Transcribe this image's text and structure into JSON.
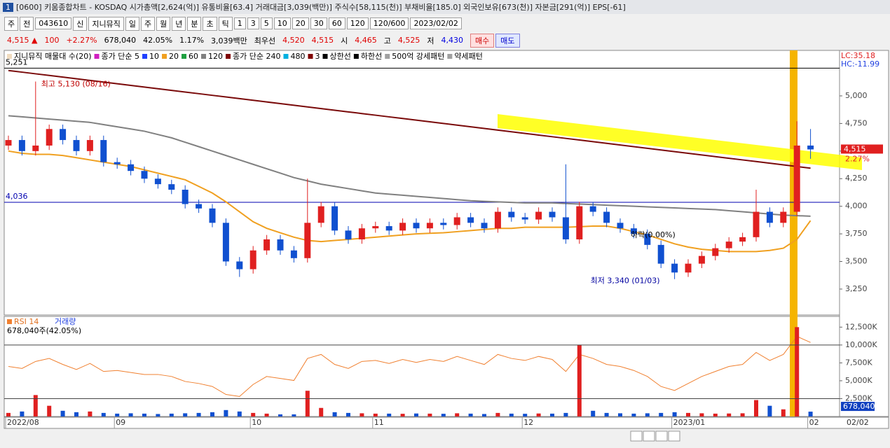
{
  "window": {
    "title": "[0600] 키움종합차트 - KOSDAQ 시가총액[2,624(억)] 유통비율[63.4] 거래대금[3,039(백만)] 주식수[58,115(천)] 부채비율[185.0] 외국인보유[673(천)] 자본금[291(억)] EPS[-61]"
  },
  "toolbar": {
    "items": [
      "주",
      "전",
      "043610",
      "신",
      "지니뮤직",
      "일",
      "주",
      "월",
      "년",
      "분",
      "초",
      "틱",
      "1",
      "3",
      "5",
      "10",
      "20",
      "30",
      "60",
      "120",
      "120/600",
      "2023/02/02"
    ]
  },
  "quote": {
    "items": [
      {
        "text": "4,515 ▲",
        "color": "#e00000"
      },
      {
        "text": "100",
        "color": "#e00000"
      },
      {
        "text": "+2.27%",
        "color": "#e00000"
      },
      {
        "text": "678,040",
        "color": "#000000"
      },
      {
        "text": "42.05%",
        "color": "#000000"
      },
      {
        "text": "1.17%",
        "color": "#000000"
      },
      {
        "text": "3,039백만",
        "color": "#000000"
      },
      {
        "text": "최우선",
        "color": "#000000"
      },
      {
        "text": "4,520",
        "color": "#e00000"
      },
      {
        "text": "4,515",
        "color": "#e00000"
      },
      {
        "text": "시",
        "color": "#000000"
      },
      {
        "text": "4,465",
        "color": "#e00000"
      },
      {
        "text": "고",
        "color": "#000000"
      },
      {
        "text": "4,525",
        "color": "#e00000"
      },
      {
        "text": "저",
        "color": "#000000"
      },
      {
        "text": "4,430",
        "color": "#0000e0"
      }
    ],
    "buy": "매수",
    "sell": "매도"
  },
  "chart_data": {
    "type": "candlestick",
    "legend": [
      {
        "text": "지니뮤직 매물대 수(20)",
        "color": "#f0dcc0"
      },
      {
        "text": "종가 단순 5",
        "color": "#d020c0"
      },
      {
        "text": "10",
        "color": "#2040ff"
      },
      {
        "text": "20",
        "color": "#f0a020"
      },
      {
        "text": "60",
        "color": "#20a040"
      },
      {
        "text": "120",
        "color": "#808080"
      },
      {
        "text": "종가 단순 240",
        "color": "#800000"
      },
      {
        "text": "480",
        "color": "#00b0e0"
      },
      {
        "text": "3",
        "color": "#800000"
      },
      {
        "text": "상한선",
        "color": "#000000"
      },
      {
        "text": "하한선",
        "color": "#000000"
      },
      {
        "text": "500억 강세패턴",
        "color": "#a0a0a0"
      },
      {
        "text": "약세패턴",
        "color": "#a0a0a0"
      }
    ],
    "categories": [
      "2022/08",
      null,
      null,
      null,
      null,
      null,
      null,
      null,
      "09",
      null,
      null,
      null,
      null,
      null,
      null,
      null,
      null,
      null,
      "10",
      null,
      null,
      null,
      null,
      null,
      null,
      null,
      null,
      "11",
      null,
      null,
      null,
      null,
      null,
      null,
      null,
      null,
      null,
      null,
      "12",
      null,
      null,
      null,
      null,
      null,
      null,
      null,
      null,
      null,
      null,
      "2023/01",
      null,
      null,
      null,
      null,
      null,
      null,
      null,
      null,
      null,
      "02"
    ],
    "open": [
      4550,
      4600,
      4500,
      4550,
      4700,
      4600,
      4500,
      4600,
      4400,
      4380,
      4320,
      4250,
      4200,
      4150,
      4020,
      3980,
      3850,
      3500,
      3430,
      3600,
      3700,
      3600,
      3530,
      3850,
      4000,
      3780,
      3700,
      3800,
      3820,
      3780,
      3850,
      3800,
      3850,
      3830,
      3900,
      3850,
      3800,
      3950,
      3900,
      3880,
      3950,
      3900,
      3700,
      4000,
      3950,
      3850,
      3800,
      3750,
      3650,
      3480,
      3400,
      3480,
      3550,
      3620,
      3680,
      3720,
      3950,
      3850,
      3950,
      4550
    ],
    "high": [
      4640,
      4640,
      5130,
      4740,
      4740,
      4640,
      4640,
      4640,
      4440,
      4420,
      4360,
      4290,
      4240,
      4190,
      4060,
      4020,
      3890,
      3540,
      3640,
      3740,
      3740,
      3640,
      4250,
      4040,
      4040,
      3820,
      3840,
      3860,
      3860,
      3890,
      3890,
      3890,
      3890,
      3940,
      3940,
      3890,
      3990,
      3990,
      3940,
      3990,
      3990,
      4380,
      4040,
      4040,
      3990,
      3890,
      3840,
      3790,
      3690,
      3520,
      3520,
      3590,
      3660,
      3720,
      3760,
      4150,
      3990,
      3990,
      4770,
      4700
    ],
    "low": [
      4510,
      4460,
      4460,
      4510,
      4560,
      4460,
      4460,
      4360,
      4340,
      4280,
      4210,
      4160,
      4110,
      3980,
      3940,
      3810,
      3460,
      3360,
      3390,
      3560,
      3560,
      3490,
      3490,
      3810,
      3740,
      3660,
      3660,
      3760,
      3740,
      3740,
      3760,
      3760,
      3790,
      3790,
      3810,
      3760,
      3760,
      3860,
      3840,
      3840,
      3860,
      3660,
      3660,
      3910,
      3810,
      3760,
      3710,
      3610,
      3440,
      3340,
      3360,
      3440,
      3510,
      3580,
      3640,
      3680,
      3810,
      3810,
      3910,
      4430
    ],
    "close": [
      4600,
      4500,
      4550,
      4700,
      4600,
      4500,
      4600,
      4400,
      4380,
      4320,
      4250,
      4200,
      4150,
      4020,
      3980,
      3850,
      3500,
      3430,
      3600,
      3700,
      3600,
      3530,
      3850,
      4000,
      3780,
      3700,
      3800,
      3820,
      3780,
      3850,
      3800,
      3850,
      3830,
      3900,
      3850,
      3800,
      3950,
      3900,
      3880,
      3950,
      3900,
      3700,
      4000,
      3950,
      3850,
      3800,
      3750,
      3650,
      3480,
      3400,
      3480,
      3550,
      3620,
      3680,
      3720,
      3950,
      3850,
      3950,
      4550,
      4515
    ],
    "up_color": "#e02020",
    "down_color": "#1050d0",
    "series": [
      {
        "color": "#f0a020",
        "values": [
          4500,
          4480,
          4470,
          4470,
          4460,
          4440,
          4420,
          4400,
          4380,
          4360,
          4330,
          4300,
          4270,
          4240,
          4180,
          4120,
          4040,
          3950,
          3860,
          3800,
          3760,
          3720,
          3690,
          3680,
          3690,
          3700,
          3710,
          3720,
          3730,
          3740,
          3750,
          3755,
          3760,
          3770,
          3780,
          3790,
          3800,
          3800,
          3810,
          3810,
          3810,
          3810,
          3815,
          3820,
          3820,
          3800,
          3770,
          3740,
          3700,
          3660,
          3630,
          3610,
          3600,
          3590,
          3590,
          3590,
          3600,
          3620,
          3700,
          3870
        ]
      },
      {
        "color": "#808080",
        "values": [
          4820,
          4810,
          4800,
          4790,
          4780,
          4770,
          4760,
          4740,
          4720,
          4700,
          4680,
          4650,
          4620,
          4580,
          4540,
          4500,
          4460,
          4420,
          4380,
          4340,
          4300,
          4260,
          4230,
          4200,
          4180,
          4160,
          4140,
          4120,
          4110,
          4100,
          4090,
          4080,
          4070,
          4060,
          4050,
          4045,
          4040,
          4035,
          4030,
          4030,
          4030,
          4025,
          4020,
          4015,
          4010,
          4005,
          4000,
          3995,
          3990,
          3985,
          3980,
          3975,
          3970,
          3960,
          3950,
          3940,
          3930,
          3920,
          3915,
          3910
        ]
      },
      {
        "color": "#7a0a0a",
        "values": [
          5230,
          5215,
          5200,
          5185,
          5170,
          5155,
          5140,
          5125,
          5110,
          5095,
          5080,
          5065,
          5050,
          5035,
          5020,
          5005,
          4990,
          4975,
          4960,
          4945,
          4930,
          4915,
          4900,
          4885,
          4870,
          4855,
          4840,
          4825,
          4810,
          4795,
          4780,
          4765,
          4750,
          4735,
          4720,
          4705,
          4690,
          4675,
          4660,
          4645,
          4630,
          4615,
          4600,
          4585,
          4570,
          4555,
          4540,
          4525,
          4510,
          4495,
          4480,
          4465,
          4450,
          4435,
          4420,
          4405,
          4390,
          4375,
          4360,
          4345
        ]
      },
      {
        "name": "RSI 14",
        "color": "#f08030",
        "axis": "y2",
        "values": [
          50,
          48,
          55,
          58,
          52,
          47,
          53,
          45,
          46,
          44,
          42,
          42,
          40,
          35,
          33,
          30,
          22,
          20,
          32,
          40,
          38,
          36,
          58,
          62,
          52,
          48,
          55,
          56,
          53,
          57,
          54,
          57,
          55,
          60,
          56,
          52,
          62,
          58,
          56,
          60,
          57,
          45,
          62,
          58,
          52,
          50,
          46,
          40,
          30,
          26,
          33,
          40,
          45,
          50,
          52,
          64,
          56,
          62,
          80,
          74
        ]
      }
    ],
    "volume": {
      "name": "거래량",
      "values": [
        500,
        700,
        3000,
        1500,
        800,
        600,
        700,
        500,
        400,
        450,
        400,
        350,
        400,
        450,
        500,
        600,
        900,
        700,
        500,
        400,
        300,
        300,
        3600,
        1200,
        600,
        500,
        450,
        400,
        400,
        380,
        420,
        400,
        380,
        450,
        400,
        350,
        500,
        400,
        380,
        420,
        400,
        500,
        10000,
        800,
        500,
        450,
        400,
        450,
        500,
        600,
        500,
        450,
        400,
        420,
        450,
        2300,
        1500,
        1000,
        12500,
        678
      ],
      "ylim": [
        0,
        14000
      ],
      "yticks": [
        {
          "value": 2500,
          "label": "2,500K"
        },
        {
          "value": 5000,
          "label": "5,000K"
        },
        {
          "value": 7500,
          "label": "7,500K"
        },
        {
          "value": 10000,
          "label": "10,000K"
        },
        {
          "value": 12500,
          "label": "12,500K"
        }
      ],
      "current_label": "678,040",
      "info": "678,040주(42.05%)"
    },
    "ylim": [
      3015,
      5412
    ],
    "yticks": [
      {
        "value": 3250,
        "label": "3,250"
      },
      {
        "value": 3500,
        "label": "3,500"
      },
      {
        "value": 3750,
        "label": "3,750"
      },
      {
        "value": 4000,
        "label": "4,000"
      },
      {
        "value": 4250,
        "label": "4,250"
      },
      {
        "value": 4500,
        "label": "4,500"
      },
      {
        "value": 4750,
        "label": "4,750"
      },
      {
        "value": 5000,
        "label": "5,000"
      }
    ],
    "y2lim": [
      0,
      100
    ],
    "reference_lines": [
      {
        "value": 5251,
        "label": "5,251",
        "color": "#000000"
      },
      {
        "value": 4036,
        "label": "4,036",
        "color": "#0000b0"
      }
    ],
    "last_price": {
      "value": 4515,
      "label": "4,515"
    },
    "last_change": "2.27%",
    "high_note": "최고 5,130 (08/16)",
    "low_note": "최저 3,340 (01/03)",
    "fall_note": "하락(0.00%)",
    "lc": "LC:35.18",
    "hc": "HC:-11.99",
    "current_date": "02/02"
  }
}
